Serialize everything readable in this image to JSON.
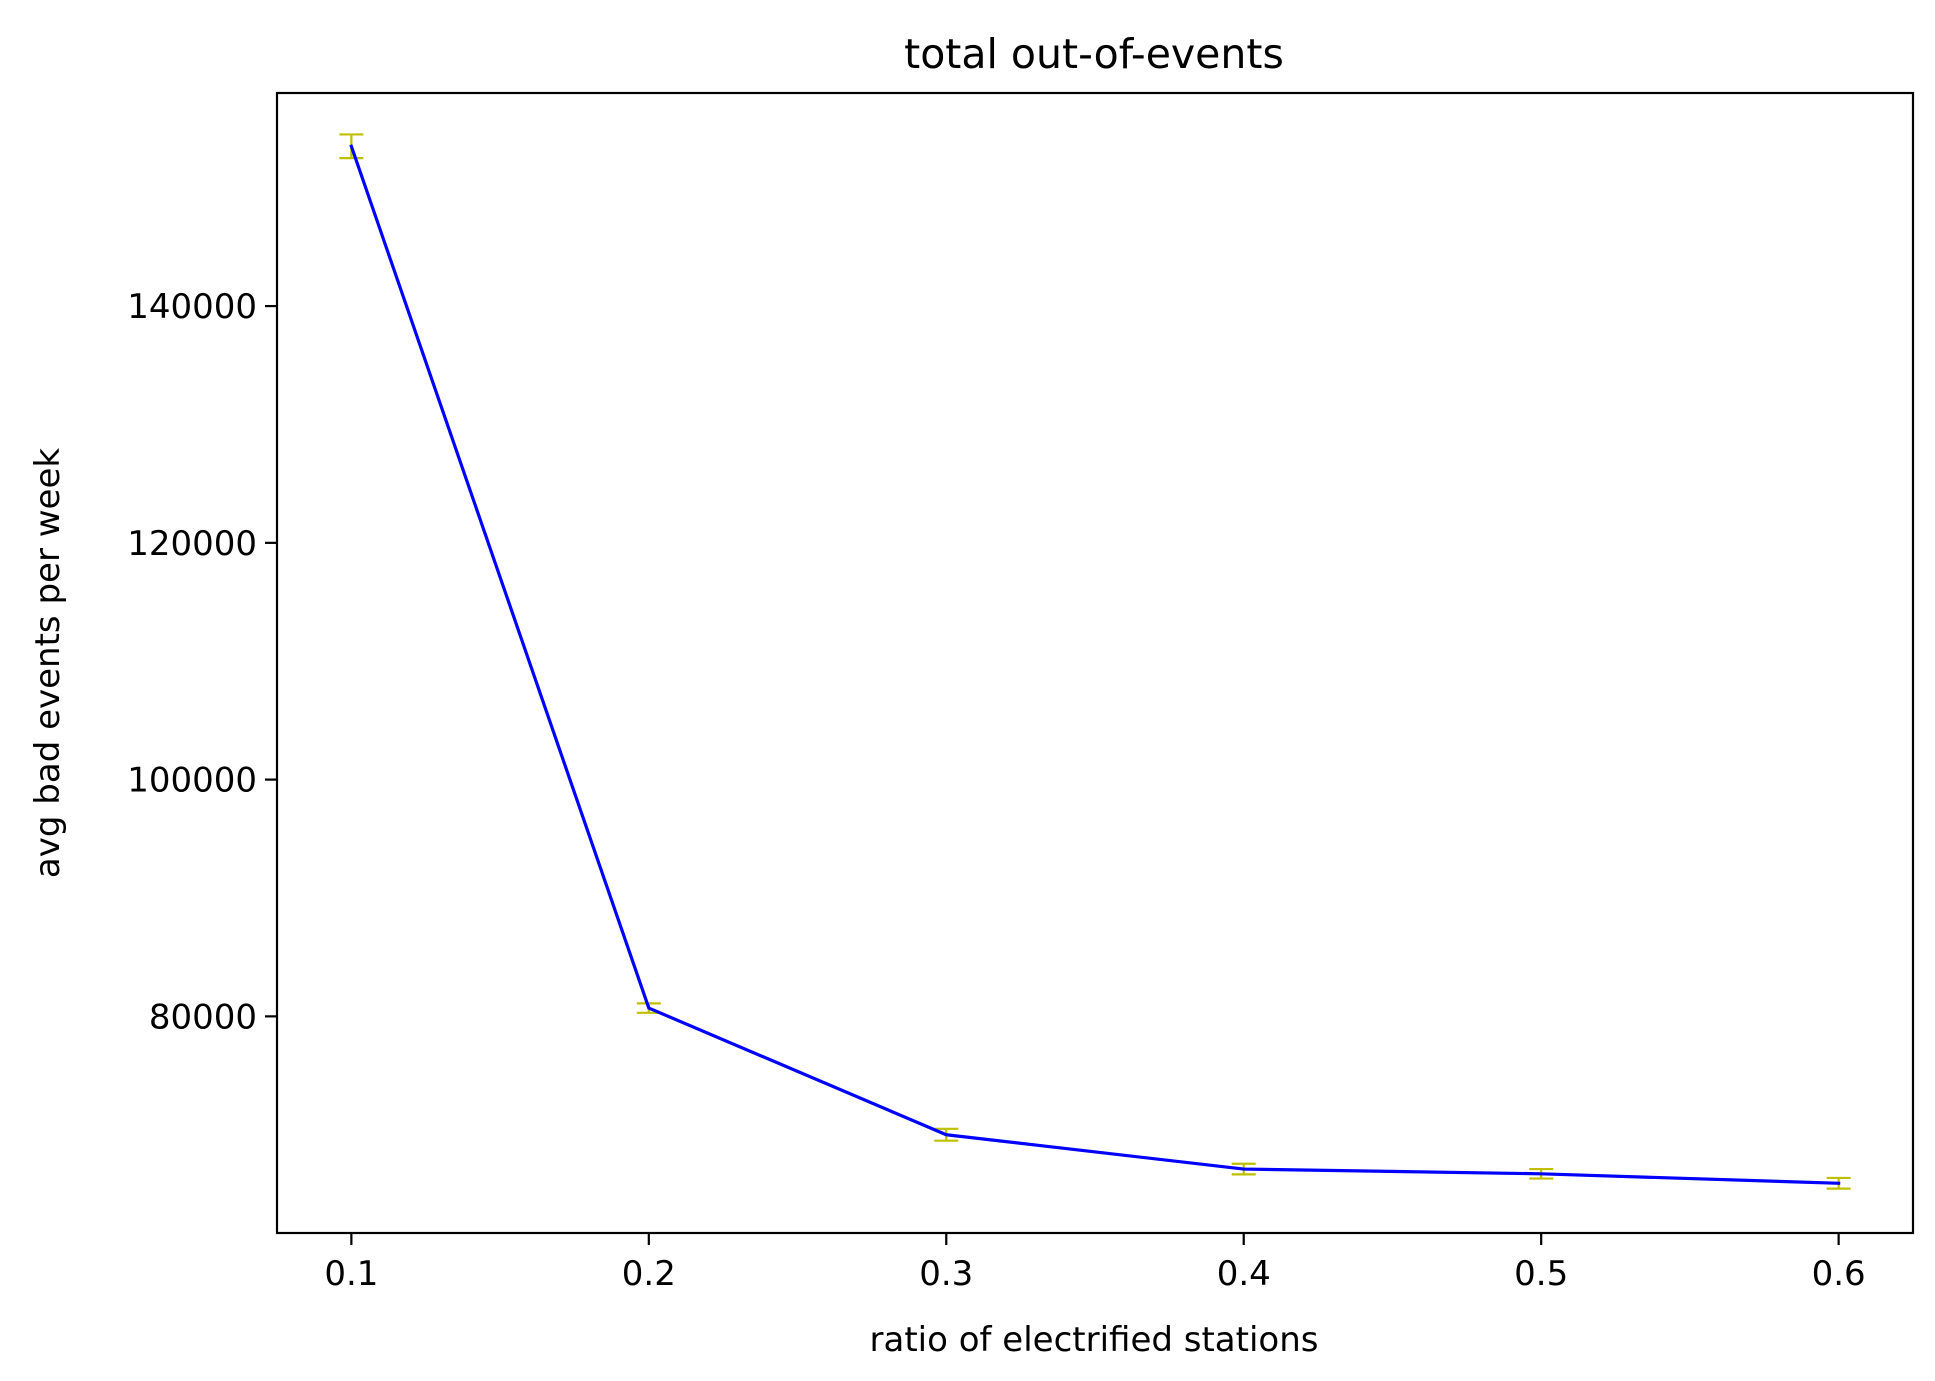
{
  "chart_data": {
    "type": "line",
    "title": "total out-of-events",
    "xlabel": "ratio of electrified stations",
    "ylabel": "avg bad events per week",
    "x": [
      0.1,
      0.2,
      0.3,
      0.4,
      0.5,
      0.6
    ],
    "x_tick_labels": [
      "0.1",
      "0.2",
      "0.3",
      "0.4",
      "0.5",
      "0.6"
    ],
    "y_ticks": [
      80000,
      100000,
      120000,
      140000
    ],
    "y_tick_labels": [
      "80000",
      "100000",
      "120000",
      "140000"
    ],
    "xlim": [
      0.075,
      0.625
    ],
    "ylim": [
      61700,
      158000
    ],
    "grid": false,
    "series": [
      {
        "values": [
          153500,
          80700,
          70000,
          67100,
          66700,
          65900
        ],
        "errors": [
          1000,
          400,
          500,
          450,
          400,
          450
        ],
        "color": "#0000ff",
        "error_color": "#bfbf00"
      }
    ]
  }
}
